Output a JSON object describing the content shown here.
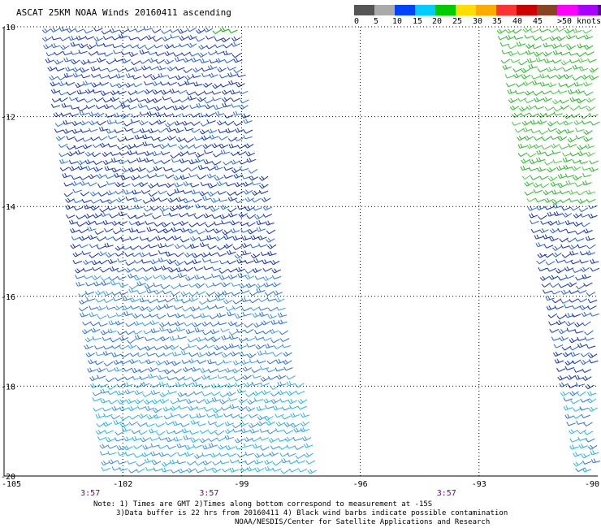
{
  "title": "ASCAT 25KM NOAA Winds 20160411 ascending",
  "legend": {
    "colors": [
      "#555555",
      "#aaaaaa",
      "#0044ff",
      "#00ccff",
      "#00cc00",
      "#ffdd00",
      "#ffaa00",
      "#ff3333",
      "#cc0000",
      "#884422",
      "#ff00ff",
      "#aa00ff",
      "#550088"
    ],
    "labels": [
      "0",
      "5",
      "10",
      "15",
      "20",
      "25",
      "30",
      "35",
      "40",
      "45",
      ">50 knots"
    ]
  },
  "map": {
    "lon_ticks": [
      "-105",
      "-102",
      "-99",
      "-96",
      "-93",
      "-90"
    ],
    "lon_values": [
      -105,
      -102,
      -99,
      -96,
      -93,
      -90
    ],
    "lat_ticks": [
      "-10",
      "-12",
      "-14",
      "-16",
      "-18",
      "-20"
    ],
    "lat_values": [
      -10,
      -12,
      -14,
      -16,
      -18,
      -20
    ],
    "times": [
      "3:57",
      "3:57",
      "3:57"
    ],
    "time_lons": [
      -102,
      -99,
      -93
    ],
    "swaths": [
      {
        "name": "west",
        "corners_lonlat": [
          [
            -104.05,
            -10
          ],
          [
            -99.0,
            -10
          ],
          [
            -99.0,
            -20
          ],
          [
            -100.9,
            -20
          ],
          [
            -104.05,
            -10
          ]
        ]
      },
      {
        "name": "east",
        "corners_lonlat": [
          [
            -92.4,
            -10
          ],
          [
            -90,
            -10
          ],
          [
            -90,
            -20
          ],
          [
            -90.5,
            -20
          ]
        ]
      }
    ]
  },
  "notes": {
    "line1": "Note: 1) Times are GMT 2)Times along bottom correspond to measurement at -15S",
    "line2": "3)Data buffer is 22 hrs from 20160411 4) Black wind barbs indicate possible contamination",
    "line3": "NOAA/NESDIS/Center for Satellite Applications and Research"
  }
}
